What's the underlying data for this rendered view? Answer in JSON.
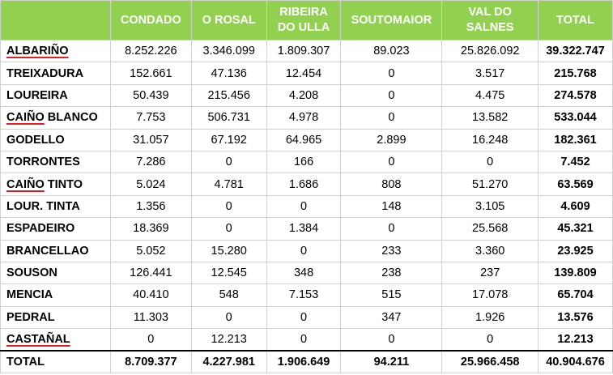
{
  "columns": [
    "CONDADO",
    "O ROSAL",
    "RIBEIRA DO ULLA",
    "SOUTOMAIOR",
    "VAL DO SALNES",
    "TOTAL"
  ],
  "rows": [
    {
      "name_u": "ALBARIÑO",
      "name_rest": "",
      "values": [
        "8.252.226",
        "3.346.099",
        "1.809.307",
        "89.023",
        "25.826.092"
      ],
      "total": "39.322.747"
    },
    {
      "name_u": "",
      "name_rest": "TREIXADURA",
      "values": [
        "152.661",
        "47.136",
        "12.454",
        "0",
        "3.517"
      ],
      "total": "215.768"
    },
    {
      "name_u": "",
      "name_rest": "LOUREIRA",
      "values": [
        "50.439",
        "215.456",
        "4.208",
        "0",
        "4.475"
      ],
      "total": "274.578"
    },
    {
      "name_u": "CAIÑO",
      "name_rest": " BLANCO",
      "values": [
        "7.753",
        "506.731",
        "4.978",
        "0",
        "13.582"
      ],
      "total": "533.044"
    },
    {
      "name_u": "",
      "name_rest": "GODELLO",
      "values": [
        "31.057",
        "67.192",
        "64.965",
        "2.899",
        "16.248"
      ],
      "total": "182.361"
    },
    {
      "name_u": "",
      "name_rest": "TORRONTES",
      "values": [
        "7.286",
        "0",
        "166",
        "0",
        "0"
      ],
      "total": "7.452"
    },
    {
      "name_u": "CAIÑO",
      "name_rest": " TINTO",
      "values": [
        "5.024",
        "4.781",
        "1.686",
        "808",
        "51.270"
      ],
      "total": "63.569"
    },
    {
      "name_u": "",
      "name_rest": "LOUR. TINTA",
      "values": [
        "1.356",
        "0",
        "0",
        "148",
        "3.105"
      ],
      "total": "4.609"
    },
    {
      "name_u": "",
      "name_rest": "ESPADEIRO",
      "values": [
        "18.369",
        "0",
        "1.384",
        "0",
        "25.568"
      ],
      "total": "45.321"
    },
    {
      "name_u": "",
      "name_rest": "BRANCELLAO",
      "values": [
        "5.052",
        "15.280",
        "0",
        "233",
        "3.360"
      ],
      "total": "23.925"
    },
    {
      "name_u": "",
      "name_rest": "SOUSON",
      "values": [
        "126.441",
        "12.545",
        "348",
        "238",
        "237"
      ],
      "total": "139.809"
    },
    {
      "name_u": "",
      "name_rest": "MENCIA",
      "values": [
        "40.410",
        "548",
        "7.153",
        "515",
        "17.078"
      ],
      "total": "65.704"
    },
    {
      "name_u": "",
      "name_rest": "PEDRAL",
      "values": [
        "11.303",
        "0",
        "0",
        "347",
        "1.926"
      ],
      "total": "13.576"
    },
    {
      "name_u": "CASTAÑAL",
      "name_rest": "",
      "values": [
        "0",
        "12.213",
        "0",
        "0",
        "0"
      ],
      "total": "12.213"
    }
  ],
  "totals": {
    "label": "TOTAL",
    "values": [
      "8.709.377",
      "4.227.981",
      "1.906.649",
      "94.211",
      "25.966.458"
    ],
    "total": "40.904.676"
  }
}
